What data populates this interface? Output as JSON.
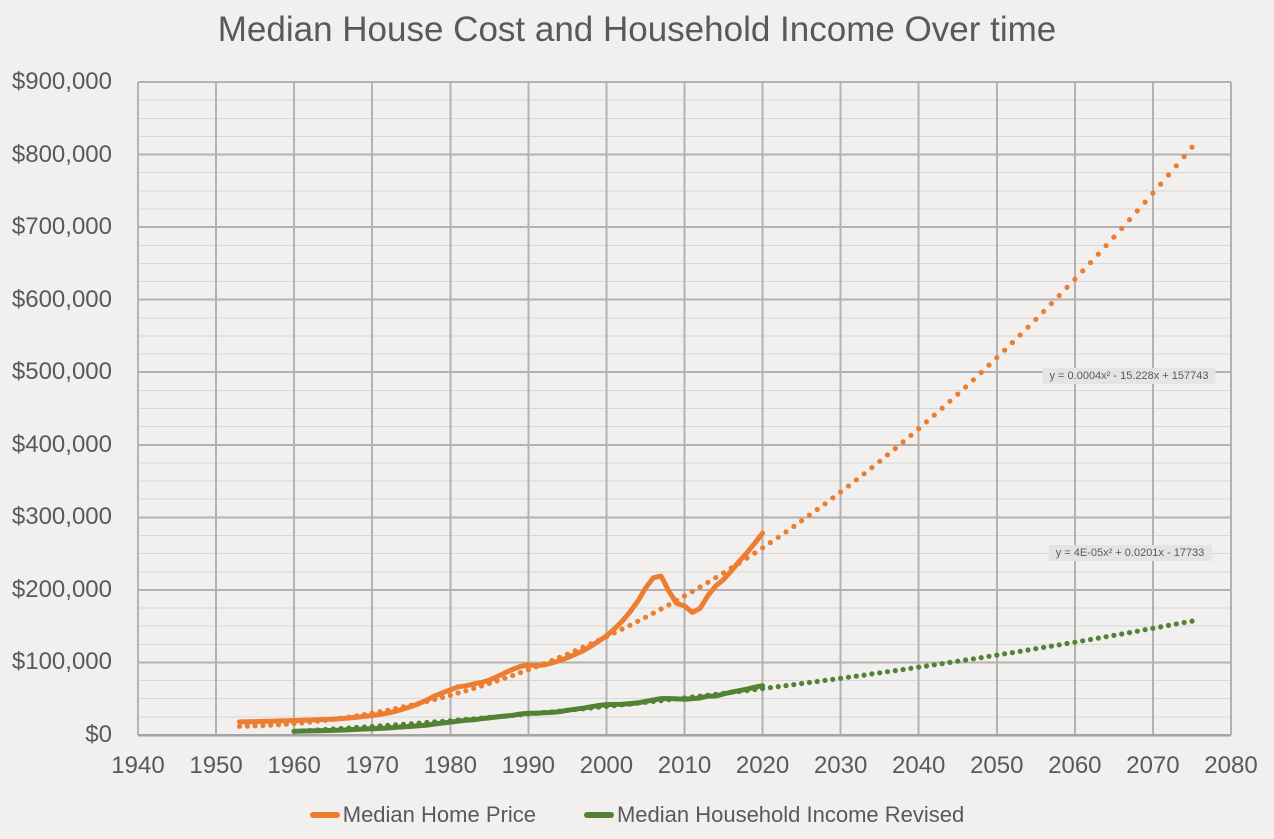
{
  "title": "Median House Cost and Household Income Over time",
  "equations": {
    "home_price": "y = 0.0004x² - 15.228x + 157743",
    "income": "y = 4E-05x² + 0.0201x - 17733"
  },
  "legend": {
    "position": "bottom",
    "items": [
      {
        "label": "Median Home Price",
        "color": "#ED7D31"
      },
      {
        "label": "Median Household Income Revised",
        "color": "#548235"
      }
    ]
  },
  "colors": {
    "background": "#F2F0EF",
    "text": "#595959",
    "major_gridline": "#B3B1B1",
    "minor_gridline": "#D8D6D6",
    "axis_line": "#A5A3A3",
    "home_price": "#ED7D31",
    "income": "#548235",
    "equation_label_background": "#E6E4E2"
  },
  "chart_data": {
    "type": "line",
    "title": "Median House Cost and Household Income Over time",
    "xlabel": "",
    "ylabel": "",
    "legend_position": "bottom",
    "grid": {
      "major": true,
      "minor_horizontal": true
    },
    "x_axis": {
      "min": 1940,
      "max": 2080,
      "tick_interval": 10,
      "ticks": [
        "1940",
        "1950",
        "1960",
        "1970",
        "1980",
        "1990",
        "2000",
        "2010",
        "2020",
        "2030",
        "2040",
        "2050",
        "2060",
        "2070",
        "2080"
      ]
    },
    "y_axis": {
      "min": 0,
      "max": 900000,
      "tick_interval": 100000,
      "minor_interval": 25000,
      "ticks": [
        "$0",
        "$100,000",
        "$200,000",
        "$300,000",
        "$400,000",
        "$500,000",
        "$600,000",
        "$700,000",
        "$800,000",
        "$900,000"
      ]
    },
    "series": [
      {
        "id": "home-price",
        "name": "Median Home Price",
        "color": "#ED7D31",
        "style": "solid",
        "points": [
          [
            1953,
            18000
          ],
          [
            1954,
            18200
          ],
          [
            1955,
            18500
          ],
          [
            1956,
            18700
          ],
          [
            1957,
            19000
          ],
          [
            1958,
            19300
          ],
          [
            1959,
            19600
          ],
          [
            1960,
            19900
          ],
          [
            1961,
            20200
          ],
          [
            1962,
            20500
          ],
          [
            1963,
            20900
          ],
          [
            1964,
            21400
          ],
          [
            1965,
            21900
          ],
          [
            1966,
            22600
          ],
          [
            1967,
            23400
          ],
          [
            1968,
            24400
          ],
          [
            1969,
            25600
          ],
          [
            1970,
            26900
          ],
          [
            1971,
            28300
          ],
          [
            1972,
            30200
          ],
          [
            1973,
            32700
          ],
          [
            1974,
            35800
          ],
          [
            1975,
            39300
          ],
          [
            1976,
            43400
          ],
          [
            1977,
            48200
          ],
          [
            1978,
            53700
          ],
          [
            1979,
            58200
          ],
          [
            1980,
            62200
          ],
          [
            1981,
            66400
          ],
          [
            1982,
            67800
          ],
          [
            1983,
            70300
          ],
          [
            1984,
            72400
          ],
          [
            1985,
            75500
          ],
          [
            1986,
            80300
          ],
          [
            1987,
            85600
          ],
          [
            1988,
            90600
          ],
          [
            1989,
            94500
          ],
          [
            1990,
            96500
          ],
          [
            1991,
            95700
          ],
          [
            1992,
            96600
          ],
          [
            1993,
            99300
          ],
          [
            1994,
            102600
          ],
          [
            1995,
            106600
          ],
          [
            1996,
            111200
          ],
          [
            1997,
            116100
          ],
          [
            1998,
            122300
          ],
          [
            1999,
            129300
          ],
          [
            2000,
            136600
          ],
          [
            2001,
            146000
          ],
          [
            2002,
            156600
          ],
          [
            2003,
            169500
          ],
          [
            2004,
            184100
          ],
          [
            2005,
            202500
          ],
          [
            2006,
            216700
          ],
          [
            2007,
            219000
          ],
          [
            2008,
            198100
          ],
          [
            2009,
            181200
          ],
          [
            2010,
            178000
          ],
          [
            2011,
            169000
          ],
          [
            2012,
            174600
          ],
          [
            2013,
            192100
          ],
          [
            2014,
            205300
          ],
          [
            2015,
            214200
          ],
          [
            2016,
            226100
          ],
          [
            2017,
            239100
          ],
          [
            2018,
            251200
          ],
          [
            2019,
            264400
          ],
          [
            2020,
            278400
          ]
        ]
      },
      {
        "id": "income",
        "name": "Median Household Income Revised",
        "color": "#548235",
        "style": "solid",
        "points": [
          [
            1960,
            5200
          ],
          [
            1961,
            5400
          ],
          [
            1962,
            5600
          ],
          [
            1963,
            5800
          ],
          [
            1964,
            6100
          ],
          [
            1965,
            6400
          ],
          [
            1966,
            6800
          ],
          [
            1967,
            7200
          ],
          [
            1968,
            7700
          ],
          [
            1969,
            8300
          ],
          [
            1970,
            8700
          ],
          [
            1971,
            9100
          ],
          [
            1972,
            9700
          ],
          [
            1973,
            10500
          ],
          [
            1974,
            11200
          ],
          [
            1975,
            11800
          ],
          [
            1976,
            12700
          ],
          [
            1977,
            13600
          ],
          [
            1978,
            15100
          ],
          [
            1979,
            16500
          ],
          [
            1980,
            17700
          ],
          [
            1981,
            19100
          ],
          [
            1982,
            20200
          ],
          [
            1983,
            21000
          ],
          [
            1984,
            22400
          ],
          [
            1985,
            23600
          ],
          [
            1986,
            24900
          ],
          [
            1987,
            26100
          ],
          [
            1988,
            27200
          ],
          [
            1989,
            28900
          ],
          [
            1990,
            29900
          ],
          [
            1991,
            30100
          ],
          [
            1992,
            30600
          ],
          [
            1993,
            31200
          ],
          [
            1994,
            32300
          ],
          [
            1995,
            34100
          ],
          [
            1996,
            35500
          ],
          [
            1997,
            37000
          ],
          [
            1998,
            38900
          ],
          [
            1999,
            40700
          ],
          [
            2000,
            41900
          ],
          [
            2001,
            42200
          ],
          [
            2002,
            42400
          ],
          [
            2003,
            43300
          ],
          [
            2004,
            44300
          ],
          [
            2005,
            46300
          ],
          [
            2006,
            48200
          ],
          [
            2007,
            50200
          ],
          [
            2008,
            50300
          ],
          [
            2009,
            49800
          ],
          [
            2010,
            49300
          ],
          [
            2011,
            50100
          ],
          [
            2012,
            51000
          ],
          [
            2013,
            53600
          ],
          [
            2014,
            53700
          ],
          [
            2015,
            56500
          ],
          [
            2016,
            59000
          ],
          [
            2017,
            61100
          ],
          [
            2018,
            63200
          ],
          [
            2019,
            65900
          ],
          [
            2020,
            68000
          ]
        ]
      },
      {
        "id": "home-price-trend",
        "name": "Median Home Price polynomial trendline",
        "color": "#ED7D31",
        "style": "dotted",
        "equation_text": "y = 0.0004x² - 15.228x + 157743",
        "start_year": 1953,
        "end_year": 2075,
        "quad": {
          "base_year": 1953,
          "a": 52.18,
          "b": 175.6,
          "c": 12000
        },
        "sample_points": [
          [
            1953,
            12000
          ],
          [
            1960,
            14800
          ],
          [
            1970,
            33000
          ],
          [
            1980,
            61600
          ],
          [
            1990,
            100700
          ],
          [
            2000,
            150100
          ],
          [
            2010,
            209900
          ],
          [
            2020,
            258000
          ],
          [
            2030,
            334900
          ],
          [
            2040,
            422200
          ],
          [
            2050,
            520000
          ],
          [
            2060,
            628200
          ],
          [
            2070,
            746800
          ],
          [
            2075,
            810100
          ]
        ]
      },
      {
        "id": "income-trend",
        "name": "Median Household Income polynomial trendline",
        "color": "#548235",
        "style": "dotted",
        "equation_text": "y = 4E-05x² + 0.0201x - 17733",
        "start_year": 1960,
        "end_year": 2075,
        "quad": {
          "base_year": 1960,
          "a": 6.157,
          "b": 613.9,
          "c": 5000
        },
        "sample_points": [
          [
            1960,
            5000
          ],
          [
            1970,
            11800
          ],
          [
            1980,
            19700
          ],
          [
            1990,
            29000
          ],
          [
            2000,
            39400
          ],
          [
            2010,
            51100
          ],
          [
            2020,
            64000
          ],
          [
            2030,
            78100
          ],
          [
            2040,
            93500
          ],
          [
            2050,
            110100
          ],
          [
            2060,
            128000
          ],
          [
            2070,
            147000
          ],
          [
            2075,
            156900
          ]
        ]
      }
    ]
  }
}
